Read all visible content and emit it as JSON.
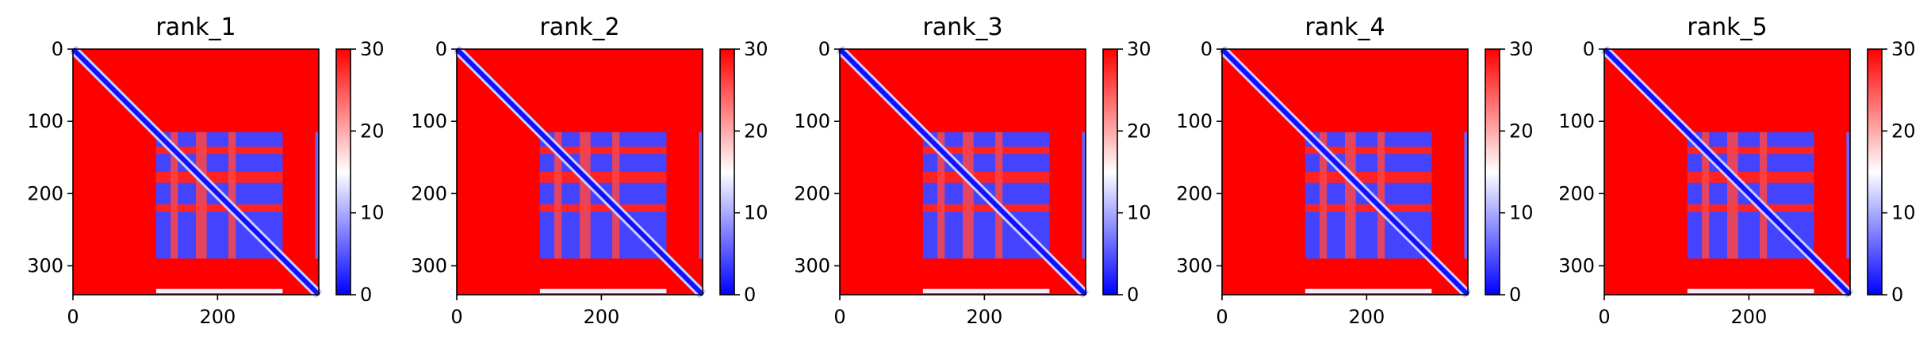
{
  "chart_data": [
    {
      "type": "heatmap",
      "title": "rank_1",
      "matrix_size": 340,
      "xlim": [
        0,
        340
      ],
      "ylim": [
        340,
        0
      ],
      "x_ticks": [
        0,
        200
      ],
      "y_ticks": [
        0,
        100,
        200,
        300
      ],
      "colorbar": {
        "min": 0,
        "max": 30,
        "ticks": [
          0,
          10,
          20,
          30
        ],
        "colormap": [
          "#0000ff",
          "#ffffff",
          "#ff0000"
        ]
      },
      "regions": {
        "diagonal_band_value": 1,
        "background_value": 30,
        "low_error_block": {
          "start": 115,
          "end": 290,
          "value": 4
        },
        "high_error_row_bands": [
          [
            135,
            145
          ],
          [
            170,
            185
          ],
          [
            215,
            225
          ]
        ],
        "high_error_col_bands": [
          [
            135,
            145
          ],
          [
            170,
            185
          ],
          [
            215,
            225
          ]
        ],
        "edge_block_cols": [
          335,
          340
        ],
        "bottom_strip_rows": [
          332,
          338
        ]
      }
    },
    {
      "type": "heatmap",
      "title": "rank_2",
      "matrix_size": 340,
      "xlim": [
        0,
        340
      ],
      "ylim": [
        340,
        0
      ],
      "x_ticks": [
        0,
        200
      ],
      "y_ticks": [
        0,
        100,
        200,
        300
      ],
      "colorbar": {
        "min": 0,
        "max": 30,
        "ticks": [
          0,
          10,
          20,
          30
        ],
        "colormap": [
          "#0000ff",
          "#ffffff",
          "#ff0000"
        ]
      },
      "regions": {
        "diagonal_band_value": 1,
        "background_value": 30,
        "low_error_block": {
          "start": 115,
          "end": 290,
          "value": 4
        },
        "high_error_row_bands": [
          [
            135,
            145
          ],
          [
            170,
            185
          ],
          [
            215,
            225
          ]
        ],
        "high_error_col_bands": [
          [
            135,
            145
          ],
          [
            170,
            185
          ],
          [
            215,
            225
          ]
        ],
        "edge_block_cols": [
          335,
          340
        ],
        "bottom_strip_rows": [
          332,
          338
        ]
      }
    },
    {
      "type": "heatmap",
      "title": "rank_3",
      "matrix_size": 340,
      "xlim": [
        0,
        340
      ],
      "ylim": [
        340,
        0
      ],
      "x_ticks": [
        0,
        200
      ],
      "y_ticks": [
        0,
        100,
        200,
        300
      ],
      "colorbar": {
        "min": 0,
        "max": 30,
        "ticks": [
          0,
          10,
          20,
          30
        ],
        "colormap": [
          "#0000ff",
          "#ffffff",
          "#ff0000"
        ]
      },
      "regions": {
        "diagonal_band_value": 1,
        "background_value": 30,
        "low_error_block": {
          "start": 115,
          "end": 290,
          "value": 4
        },
        "high_error_row_bands": [
          [
            135,
            145
          ],
          [
            170,
            185
          ],
          [
            215,
            225
          ]
        ],
        "high_error_col_bands": [
          [
            135,
            145
          ],
          [
            170,
            185
          ],
          [
            215,
            225
          ]
        ],
        "edge_block_cols": [
          335,
          340
        ],
        "bottom_strip_rows": [
          332,
          338
        ]
      }
    },
    {
      "type": "heatmap",
      "title": "rank_4",
      "matrix_size": 340,
      "xlim": [
        0,
        340
      ],
      "ylim": [
        340,
        0
      ],
      "x_ticks": [
        0,
        200
      ],
      "y_ticks": [
        0,
        100,
        200,
        300
      ],
      "colorbar": {
        "min": 0,
        "max": 30,
        "ticks": [
          0,
          10,
          20,
          30
        ],
        "colormap": [
          "#0000ff",
          "#ffffff",
          "#ff0000"
        ]
      },
      "regions": {
        "diagonal_band_value": 1,
        "background_value": 30,
        "low_error_block": {
          "start": 115,
          "end": 290,
          "value": 4
        },
        "high_error_row_bands": [
          [
            135,
            145
          ],
          [
            170,
            185
          ],
          [
            215,
            225
          ]
        ],
        "high_error_col_bands": [
          [
            135,
            145
          ],
          [
            170,
            185
          ],
          [
            215,
            225
          ]
        ],
        "edge_block_cols": [
          335,
          340
        ],
        "bottom_strip_rows": [
          332,
          338
        ]
      }
    },
    {
      "type": "heatmap",
      "title": "rank_5",
      "matrix_size": 340,
      "xlim": [
        0,
        340
      ],
      "ylim": [
        340,
        0
      ],
      "x_ticks": [
        0,
        200
      ],
      "y_ticks": [
        0,
        100,
        200,
        300
      ],
      "colorbar": {
        "min": 0,
        "max": 30,
        "ticks": [
          0,
          10,
          20,
          30
        ],
        "colormap": [
          "#0000ff",
          "#ffffff",
          "#ff0000"
        ]
      },
      "regions": {
        "diagonal_band_value": 1,
        "background_value": 30,
        "low_error_block": {
          "start": 115,
          "end": 290,
          "value": 4
        },
        "high_error_row_bands": [
          [
            135,
            145
          ],
          [
            170,
            185
          ],
          [
            215,
            225
          ]
        ],
        "high_error_col_bands": [
          [
            135,
            145
          ],
          [
            170,
            185
          ],
          [
            215,
            225
          ]
        ],
        "edge_block_cols": [
          335,
          340
        ],
        "bottom_strip_rows": [
          332,
          338
        ]
      }
    }
  ]
}
